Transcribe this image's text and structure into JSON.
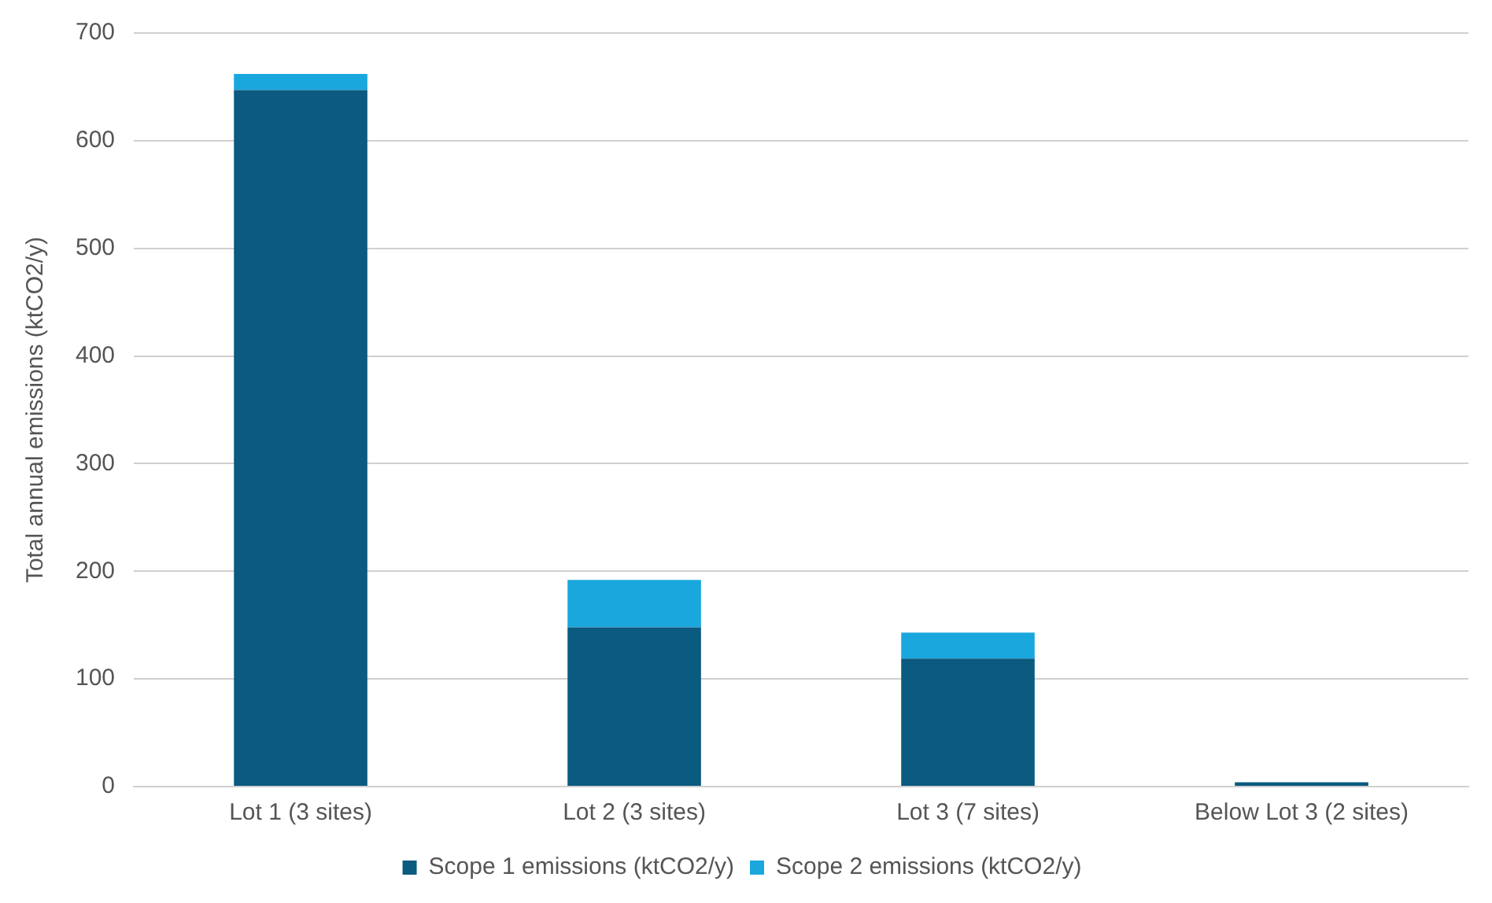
{
  "chart_data": {
    "type": "bar",
    "ylabel": "Total annual emissions (ktCO2/y)",
    "categories": [
      "Lot 1 (3 sites)",
      "Lot 2 (3 sites)",
      "Lot 3 (7 sites)",
      "Below Lot 3 (2 sites)"
    ],
    "series": [
      {
        "name": "Scope 1 emissions (ktCO2/y)",
        "color": "#0b5a80",
        "values": [
          647,
          148,
          119,
          4
        ]
      },
      {
        "name": "Scope 2 emissions (ktCO2/y)",
        "color": "#1aa7dd",
        "values": [
          15,
          44,
          24,
          0
        ]
      }
    ],
    "stacked": true,
    "ylim": [
      0,
      700
    ],
    "yticks": [
      0,
      100,
      200,
      300,
      400,
      500,
      600,
      700
    ],
    "grid": "y",
    "legend": "bottom"
  }
}
